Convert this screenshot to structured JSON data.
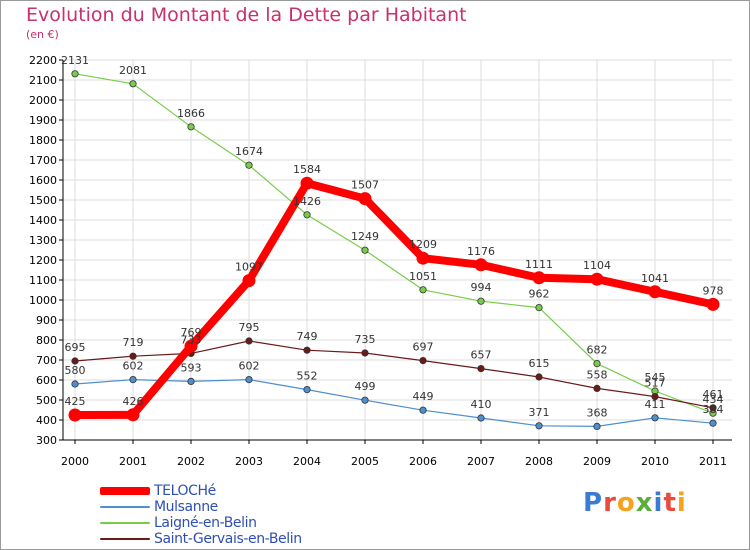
{
  "title": "Evolution du Montant de la Dette par Habitant",
  "subtitle": "(en €)",
  "logo_text": "Proxiti",
  "colors": {
    "title": "#c8316b",
    "axis": "#000000",
    "grid": "#dddddd",
    "legend_text": "#2f4fb3"
  },
  "chart_data": {
    "type": "line",
    "title": "Evolution du Montant de la Dette par Habitant",
    "subtitle": "(en €)",
    "x": [
      "2000",
      "2001",
      "2002",
      "2003",
      "2004",
      "2005",
      "2006",
      "2007",
      "2008",
      "2009",
      "2010",
      "2011"
    ],
    "ylim": [
      300,
      2200
    ],
    "yticks": [
      300,
      400,
      500,
      600,
      700,
      800,
      900,
      1000,
      1100,
      1200,
      1300,
      1400,
      1500,
      1600,
      1700,
      1800,
      1900,
      2000,
      2100,
      2200
    ],
    "grid": true,
    "legend_position": "bottom-left",
    "series": [
      {
        "name": "TELOCHé",
        "color": "#ff0000",
        "values": [
          425,
          426,
          769,
          1097,
          1584,
          1507,
          1209,
          1176,
          1111,
          1104,
          1041,
          978
        ],
        "labels": [
          "425",
          "426",
          "769",
          "1097",
          "1584",
          "1507",
          "1209",
          "1176",
          "1111",
          "1104",
          "1041",
          "978"
        ]
      },
      {
        "name": "Mulsanne",
        "color": "#4d8fcf",
        "values": [
          580,
          602,
          593,
          602,
          552,
          499,
          449,
          410,
          371,
          368,
          411,
          384
        ],
        "labels": [
          "580",
          "602",
          "593",
          "602",
          "552",
          "499",
          "449",
          "410",
          "371",
          "368",
          "411",
          "384"
        ]
      },
      {
        "name": "Laigné-en-Belin",
        "color": "#78cc4a",
        "values": [
          2131,
          2081,
          1866,
          1674,
          1426,
          1249,
          1051,
          994,
          962,
          682,
          545,
          434
        ],
        "labels": [
          "2131",
          "2081",
          "1866",
          "1674",
          "1426",
          "1249",
          "1051",
          "994",
          "962",
          "682",
          "545",
          "434"
        ]
      },
      {
        "name": "Saint-Gervais-en-Belin",
        "color": "#6b1a1a",
        "values": [
          695,
          719,
          733,
          795,
          749,
          735,
          697,
          657,
          615,
          558,
          517,
          461
        ],
        "labels": [
          "695",
          "719",
          "733",
          "795",
          "749",
          "735",
          "697",
          "657",
          "615",
          "558",
          "517",
          "461"
        ]
      }
    ]
  }
}
